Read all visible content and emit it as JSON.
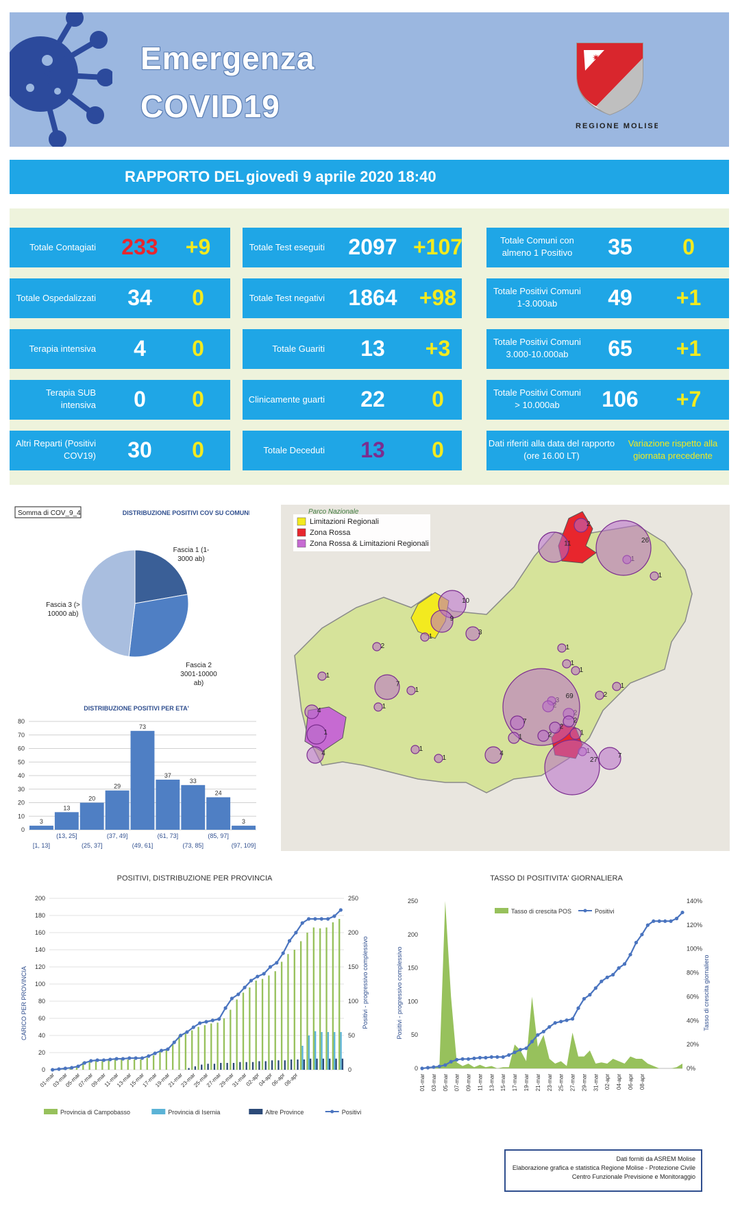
{
  "header": {
    "title_line1": "Emergenza",
    "title_line2": "COVID19",
    "logo_text": "REGIONE MOLISE"
  },
  "report": {
    "label": "RAPPORTO DEL",
    "date": "giovedì 9 aprile 2020 18:40"
  },
  "stats": {
    "col1": [
      {
        "label": "Totale Contagiati",
        "value": "233",
        "delta": "+9",
        "value_color": "#e8262d"
      },
      {
        "label": "Totale Ospedalizzati",
        "value": "34",
        "delta": "0"
      },
      {
        "label": "Terapia  intensiva",
        "value": "4",
        "delta": "0"
      },
      {
        "label": "Terapia SUB\nintensiva",
        "value": "0",
        "delta": "0"
      },
      {
        "label": "Altri Reparti (Positivi\nCOV19)",
        "value": "30",
        "delta": "0"
      }
    ],
    "col2": [
      {
        "label": "Totale Test eseguiti",
        "value": "2097",
        "delta": "+107"
      },
      {
        "label": "Totale Test negativi",
        "value": "1864",
        "delta": "+98"
      },
      {
        "label": "Totale Guariti",
        "value": "13",
        "delta": "+3"
      },
      {
        "label": "Clinicamente guarti",
        "value": "22",
        "delta": "0"
      },
      {
        "label": "Totale Deceduti",
        "value": "13",
        "delta": "0",
        "value_color": "#7b2d8f"
      }
    ],
    "col3": [
      {
        "label": "Totale Comuni con\nalmeno 1 Positivo",
        "value": "35",
        "delta": "0"
      },
      {
        "label": "Totale Positivi Comuni\n1-3.000ab",
        "value": "49",
        "delta": "+1"
      },
      {
        "label": "Totale Positivi Comuni\n3.000-10.000ab",
        "value": "65",
        "delta": "+1"
      },
      {
        "label": "Totale Positivi Comuni\n> 10.000ab",
        "value": "106",
        "delta": "+7"
      }
    ],
    "note_left": "Dati riferiti alla data del rapporto\n(ore 16.00 LT)",
    "note_right": "Variazione rispetto alla\ngiornata precedente"
  },
  "map": {
    "legend": [
      {
        "label": "Limitazioni Regionali",
        "color": "#f3ea1f"
      },
      {
        "label": "Zona Rossa",
        "color": "#e8262d"
      },
      {
        "label": "Zona Rossa & Limitazioni Regionali",
        "color": "#c66ad2"
      }
    ],
    "park_label": "Parco Nazionale",
    "circle_labels": [
      "1",
      "2",
      "11",
      "26",
      "1",
      "10",
      "9",
      "3",
      "1",
      "2",
      "1",
      "1",
      "1",
      "7",
      "1",
      "3",
      "2",
      "2",
      "4",
      "1",
      "1",
      "69",
      "2",
      "7",
      "2",
      "2",
      "1",
      "1",
      "1",
      "27",
      "7",
      "1",
      "2",
      "4",
      "4",
      "1",
      "1",
      "1"
    ]
  },
  "chart_data": [
    {
      "type": "pie",
      "id": "fasce",
      "pivot_label": "Somma di COV_9_4",
      "title": "DISTRIBUZIONE POSITIVI COV SU COMUNI",
      "labels": [
        "Fascia 1 (1-\n3000 ab)",
        "Fascia 2\n3001-10000\nab)",
        "Fascia 3 (>\n10000 ab)"
      ],
      "values": [
        49,
        65,
        106
      ],
      "colors": [
        "#3a5f97",
        "#4f7fc4",
        "#a9bedf"
      ]
    },
    {
      "type": "bar",
      "id": "eta",
      "title": "DISTRIBUZIONE POSITIVI PER ETA'",
      "categories": [
        "[1, 13]",
        "(13, 25]",
        "(25, 37]",
        "(37, 49]",
        "(49, 61]",
        "(61, 73]",
        "(73, 85]",
        "(85, 97]",
        "(97, 109]"
      ],
      "values": [
        3,
        13,
        20,
        29,
        73,
        37,
        33,
        24,
        3
      ],
      "ylim": [
        0,
        80
      ],
      "yticks": [
        0,
        10,
        20,
        30,
        40,
        50,
        60,
        70,
        80
      ],
      "color": "#4f7fc4"
    },
    {
      "type": "bar",
      "id": "province",
      "title": "POSITIVI, DISTRIBUZIONE PER PROVINCIA",
      "ylabel": "CARICO PER PROVINCIA",
      "y2label": "Positivi - progressivo complessivo",
      "ylim": [
        0,
        200
      ],
      "yticks": [
        0,
        20,
        40,
        60,
        80,
        100,
        120,
        140,
        160,
        180,
        200
      ],
      "y2lim": [
        0,
        250
      ],
      "y2ticks": [
        0,
        50,
        100,
        150,
        200,
        250
      ],
      "xtick_labels": [
        "01-mar",
        "03-mar",
        "05-mar",
        "07-mar",
        "09-mar",
        "11-mar",
        "13-mar",
        "15-mar",
        "17-mar",
        "19-mar",
        "21-mar",
        "23-mar",
        "25-mar",
        "27-mar",
        "29-mar",
        "31-mar",
        "02-apr",
        "04-apr",
        "06-apr",
        "08-apr"
      ],
      "series": [
        {
          "name": "Provincia di Campobasso",
          "color": "#97c15c",
          "values": [
            0,
            1,
            1,
            2,
            4,
            9,
            10,
            10,
            10,
            11,
            12,
            12,
            12,
            12,
            12,
            14,
            17,
            21,
            23,
            30,
            40,
            42,
            46,
            50,
            52,
            54,
            55,
            60,
            70,
            82,
            90,
            96,
            104,
            106,
            110,
            115,
            126,
            135,
            140,
            150,
            160,
            166,
            165,
            166,
            172,
            176
          ]
        },
        {
          "name": "Provincia di Isernia",
          "color": "#5bb3d6",
          "values": [
            0,
            0,
            0,
            0,
            0,
            0,
            0,
            0,
            0,
            0,
            0,
            0,
            0,
            0,
            0,
            0,
            0,
            0,
            0,
            0,
            0,
            0,
            0,
            0,
            0,
            0,
            0,
            0,
            0,
            0,
            0,
            0,
            0,
            0,
            0,
            0,
            0,
            0,
            0,
            28,
            40,
            45,
            44,
            44,
            44,
            44
          ]
        },
        {
          "name": "Altre Province",
          "color": "#2c4a78",
          "values": [
            0,
            0,
            0,
            0,
            0,
            0,
            0,
            0,
            0,
            0,
            0,
            0,
            0,
            0,
            0,
            0,
            0,
            0,
            0,
            0,
            0,
            2,
            4,
            6,
            7,
            7,
            8,
            8,
            8,
            9,
            9,
            9,
            10,
            10,
            11,
            11,
            11,
            12,
            12,
            12,
            13,
            13,
            13,
            13,
            13,
            13
          ]
        },
        {
          "name": "Positivi",
          "color": "#4a74bf",
          "type": "line",
          "axis": "y2",
          "values": [
            0,
            1,
            2,
            3,
            5,
            10,
            13,
            14,
            14,
            15,
            16,
            16,
            17,
            17,
            17,
            20,
            24,
            28,
            30,
            40,
            50,
            55,
            62,
            68,
            70,
            72,
            74,
            90,
            104,
            110,
            120,
            130,
            136,
            140,
            150,
            156,
            170,
            188,
            200,
            214,
            220,
            220,
            220,
            220,
            224,
            233
          ]
        }
      ]
    },
    {
      "type": "area",
      "id": "tasso",
      "title": "TASSO DI POSITIVITA' GIORNALIERA",
      "ylabel": "Positivi - progressivo complessivo",
      "y2label": "Tasso di crescita giornaliero",
      "ylim": [
        0,
        250
      ],
      "yticks": [
        0,
        50,
        100,
        150,
        200,
        250
      ],
      "y2lim": [
        0,
        140
      ],
      "y2ticks": [
        "0%",
        "20%",
        "40%",
        "60%",
        "80%",
        "100%",
        "120%",
        "140%"
      ],
      "xtick_labels": [
        "01-mar",
        "03-mar",
        "05-mar",
        "07-mar",
        "09-mar",
        "11-mar",
        "13-mar",
        "15-mar",
        "17-mar",
        "19-mar",
        "21-mar",
        "23-mar",
        "25-mar",
        "27-mar",
        "29-mar",
        "31-mar",
        "02-apr",
        "04-apr",
        "06-apr",
        "08-apr"
      ],
      "series": [
        {
          "name": "Tasso di crescita POS",
          "color": "#97c15c",
          "type": "area",
          "axis": "y2",
          "values": [
            0,
            0,
            0,
            2,
            140,
            60,
            5,
            2,
            4,
            1,
            3,
            1,
            2,
            0,
            1,
            1,
            20,
            15,
            6,
            60,
            18,
            28,
            8,
            4,
            6,
            2,
            30,
            10,
            10,
            15,
            4,
            5,
            4,
            8,
            6,
            4,
            10,
            8,
            8,
            4,
            2,
            0,
            0,
            0,
            1,
            4
          ]
        },
        {
          "name": "Positivi",
          "color": "#4a74bf",
          "type": "line",
          "axis": "y1",
          "values": [
            0,
            1,
            2,
            3,
            5,
            10,
            13,
            14,
            14,
            15,
            16,
            16,
            17,
            17,
            17,
            20,
            24,
            28,
            30,
            40,
            50,
            55,
            62,
            68,
            70,
            72,
            74,
            90,
            104,
            110,
            120,
            130,
            136,
            140,
            150,
            156,
            170,
            188,
            200,
            214,
            220,
            220,
            220,
            220,
            224,
            233
          ]
        }
      ]
    }
  ],
  "source": {
    "line1": "Dati forniti da ASREM Molise",
    "line2": "Elaborazione grafica e statistica Regione Molise - Protezione Civile",
    "line3": "Centro Funzionale Previsione e Monitoraggio"
  }
}
